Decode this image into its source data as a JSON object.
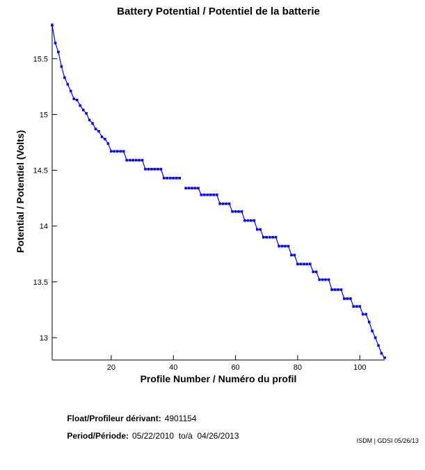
{
  "chart_data": {
    "type": "line",
    "title": "Battery Potential / Potentiel de la batterie",
    "xlabel": "Profile Number / Numéro du profil",
    "ylabel": "Potential / Potentiel (Volts)",
    "x_start": 1,
    "x_step": 1,
    "values": [
      15.8,
      15.64,
      15.56,
      15.43,
      15.33,
      15.27,
      15.21,
      15.14,
      15.13,
      15.08,
      15.04,
      15.01,
      14.95,
      14.92,
      14.87,
      14.85,
      14.8,
      14.78,
      14.74,
      14.67,
      14.67,
      14.67,
      14.67,
      14.67,
      14.59,
      14.59,
      14.59,
      14.59,
      14.59,
      14.59,
      14.51,
      14.51,
      14.51,
      14.51,
      14.51,
      14.51,
      14.43,
      14.43,
      14.43,
      14.43,
      14.43,
      14.43,
      null,
      14.34,
      14.34,
      14.34,
      14.34,
      14.34,
      14.28,
      14.28,
      14.28,
      14.28,
      14.28,
      14.28,
      14.2,
      14.2,
      14.2,
      14.2,
      14.13,
      14.13,
      14.13,
      14.13,
      14.05,
      14.05,
      14.05,
      14.05,
      13.97,
      13.97,
      13.9,
      13.9,
      13.9,
      13.9,
      13.9,
      13.82,
      13.82,
      13.82,
      13.82,
      13.74,
      13.74,
      13.66,
      13.66,
      13.66,
      13.66,
      13.66,
      13.59,
      13.59,
      13.52,
      13.52,
      13.52,
      13.52,
      13.43,
      13.43,
      13.43,
      13.43,
      13.35,
      13.35,
      13.35,
      13.28,
      13.28,
      13.28,
      13.21,
      13.21,
      13.14,
      13.06,
      13.0,
      12.93,
      12.86,
      12.82
    ],
    "xticks": [
      20,
      40,
      60,
      80,
      100
    ],
    "yticks": [
      13,
      13.5,
      14,
      14.5,
      15,
      15.5
    ],
    "ytick_labels": [
      "13",
      "13.5",
      "14",
      "14.5",
      "15",
      "15.5"
    ],
    "xlim": [
      1,
      108
    ],
    "ylim": [
      12.8,
      15.82
    ],
    "grid": false,
    "legend": null,
    "line_color": "#0000EE",
    "marker": "square"
  },
  "annotations": {
    "float_label": "Float/Profileur dérivant:",
    "float_value": "4901154",
    "period_label": "Period/Période:",
    "period_value": "05/22/2010  to/à  04/26/2013",
    "credit": "ISDM | GDSI 05/26/13"
  }
}
